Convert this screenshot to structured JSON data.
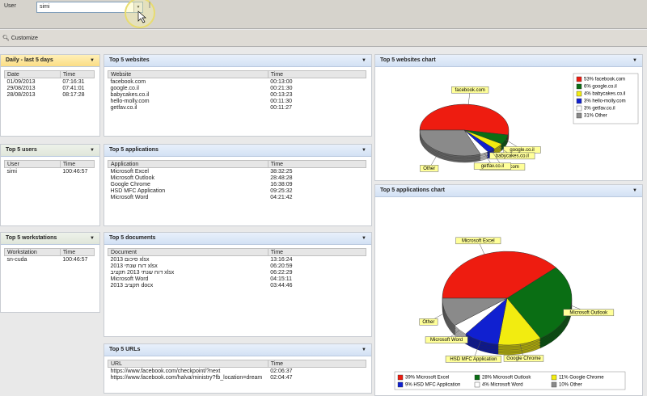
{
  "toolbar": {
    "user_label": "User",
    "user_value": "simi",
    "customize": "Customize"
  },
  "panels": [
    {
      "title": "Daily - last 5 days",
      "columns": [
        "Date",
        "Time"
      ],
      "rows": [
        [
          "01/09/2013",
          "07:16:31"
        ],
        [
          "29/08/2013",
          "07:41:01"
        ],
        [
          "28/08/2013",
          "08:17:28"
        ]
      ]
    },
    {
      "title": "Top 5 users",
      "columns": [
        "User",
        "Time"
      ],
      "rows": [
        [
          "simi",
          "100:46:57"
        ]
      ]
    },
    {
      "title": "Top 5 workstations",
      "columns": [
        "Workstation",
        "Time"
      ],
      "rows": [
        [
          "sn-cuda",
          "100:46:57"
        ]
      ]
    },
    {
      "title": "Top 5 websites",
      "columns": [
        "Website",
        "Time"
      ],
      "rows": [
        [
          "facebook.com",
          "00:13:00"
        ],
        [
          "google.co.il",
          "00:21:30"
        ],
        [
          "babycakes.co.il",
          "00:13:23"
        ],
        [
          "hello-molly.com",
          "00:11:30"
        ],
        [
          "getfav.co.il",
          "00:11:27"
        ]
      ]
    },
    {
      "title": "Top 5 applications",
      "columns": [
        "Application",
        "Time"
      ],
      "rows": [
        [
          "Microsoft Excel",
          "38:32:25"
        ],
        [
          "Microsoft Outlook",
          "28:48:28"
        ],
        [
          "Google Chrome",
          "16:38:09"
        ],
        [
          "HSD MFC Application",
          "09:25:32"
        ],
        [
          "Microsoft Word",
          "04:21:42"
        ]
      ]
    },
    {
      "title": "Top 5 documents",
      "columns": [
        "Document",
        "Time"
      ],
      "rows": [
        [
          "סיכום 2013 xlsx",
          "13:16:24"
        ],
        [
          "דוח שנתי 2013 xlsx",
          "06:20:59"
        ],
        [
          "דוח שנתי 2013 תקציב xlsx",
          "06:22:29"
        ],
        [
          "Microsoft Word",
          "04:15:11"
        ],
        [
          "תקציב 2013 docx",
          "03:44:46"
        ]
      ]
    },
    {
      "title": "Top 5 URLs",
      "columns": [
        "URL",
        "Time"
      ],
      "rows": [
        [
          "https://www.facebook.com/checkpoint/?next",
          "02:06:37"
        ],
        [
          "https://www.facebook.com/halva/ministry?fb_location=dream",
          "02:04:47"
        ]
      ]
    }
  ],
  "charts": [
    {
      "type": "pie",
      "title": "Top 5 websites chart",
      "labels": [
        "facebook.com",
        "google.co.il",
        "babycakes.co.il",
        "hello-molly.com",
        "getfav.co.il",
        "Other"
      ],
      "legend": [
        "53% facebook.com",
        "6% google.co.il",
        "4% babycakes.co.il",
        "3% hello-molly.com",
        "3% getfav.co.il",
        "31% Other"
      ],
      "values": [
        53,
        6,
        4,
        3,
        3,
        31
      ],
      "colors": [
        "#ee1c10",
        "#0a6e14",
        "#f2ec10",
        "#1020d0",
        "#ffffff",
        "#8a8a8a"
      ]
    },
    {
      "type": "pie",
      "title": "Top 5 applications chart",
      "labels": [
        "Microsoft Excel",
        "Microsoft Outlook",
        "Google Chrome",
        "HSD MFC Application",
        "Microsoft Word",
        "Other"
      ],
      "legend": [
        "39% Microsoft Excel",
        "28% Microsoft Outlook",
        "11% Google Chrome",
        "9% HSD MFC Application",
        "4% Microsoft Word",
        "10% Other"
      ],
      "values": [
        39,
        28,
        11,
        9,
        4,
        10
      ],
      "colors": [
        "#ee1c10",
        "#0a6e14",
        "#f2ec10",
        "#1020d0",
        "#ffffff",
        "#8a8a8a"
      ]
    }
  ]
}
